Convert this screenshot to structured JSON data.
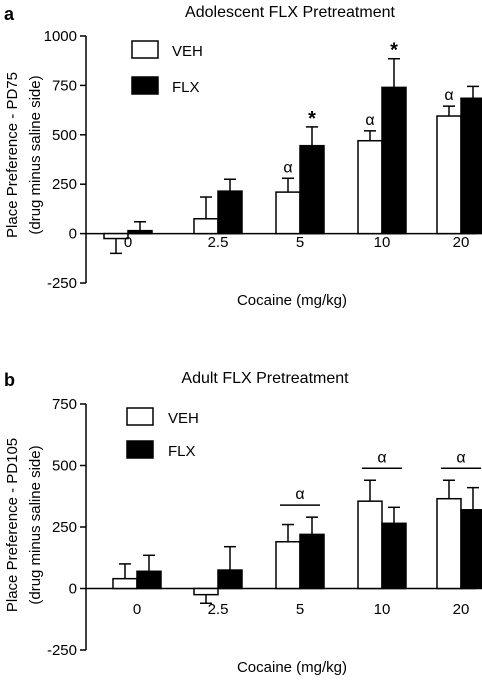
{
  "chart_data": [
    {
      "type": "bar",
      "panel": "a",
      "title": "Adolescent FLX Pretreatment",
      "xlabel": "Cocaine (mg/kg)",
      "ylabel": [
        "Place Preference - PD75",
        "(drug minus saline side)"
      ],
      "ylim": [
        -250,
        1000
      ],
      "yticks": [
        -250,
        0,
        250,
        500,
        750,
        1000
      ],
      "categories": [
        "0",
        "2.5",
        "5",
        "10",
        "20"
      ],
      "series": [
        {
          "name": "VEH",
          "color": "#ffffff",
          "values": [
            -25,
            75,
            210,
            470,
            595
          ],
          "errors": [
            75,
            110,
            70,
            50,
            50
          ]
        },
        {
          "name": "FLX",
          "color": "#000000",
          "values": [
            15,
            215,
            445,
            740,
            685
          ],
          "errors": [
            45,
            60,
            95,
            145,
            60
          ]
        }
      ],
      "legend": "top-left",
      "annotations": [
        {
          "category": "5",
          "series": "VEH",
          "text": "α"
        },
        {
          "category": "10",
          "series": "VEH",
          "text": "α"
        },
        {
          "category": "20",
          "series": "VEH",
          "text": "α"
        },
        {
          "category": "5",
          "series": "FLX",
          "text": "*"
        },
        {
          "category": "10",
          "series": "FLX",
          "text": "*"
        }
      ]
    },
    {
      "type": "bar",
      "panel": "b",
      "title": "Adult FLX Pretreatment",
      "xlabel": "Cocaine (mg/kg)",
      "ylabel": [
        "Place Preference - PD105",
        "(drug minus saline side)"
      ],
      "ylim": [
        -250,
        750
      ],
      "yticks": [
        -250,
        0,
        250,
        500,
        750
      ],
      "categories": [
        "0",
        "2.5",
        "5",
        "10",
        "20"
      ],
      "series": [
        {
          "name": "VEH",
          "color": "#ffffff",
          "values": [
            40,
            -25,
            190,
            355,
            365
          ],
          "errors": [
            60,
            35,
            70,
            85,
            75
          ]
        },
        {
          "name": "FLX",
          "color": "#000000",
          "values": [
            70,
            75,
            220,
            265,
            320
          ],
          "errors": [
            65,
            95,
            70,
            65,
            90
          ]
        }
      ],
      "legend": "top-left",
      "annotations": [
        {
          "category": "5",
          "text": "α",
          "span": "both"
        },
        {
          "category": "10",
          "text": "α",
          "span": "both"
        },
        {
          "category": "20",
          "text": "α",
          "span": "both"
        }
      ]
    }
  ]
}
